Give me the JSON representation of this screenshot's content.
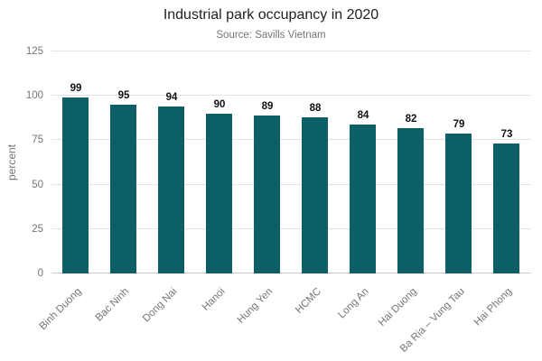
{
  "header": {
    "title": "Industrial park occupancy in 2020",
    "subtitle": "Source: Savills Vietnam"
  },
  "chart_data": {
    "type": "bar",
    "title": "Industrial park occupancy in 2020",
    "subtitle": "Source: Savills Vietnam",
    "categories": [
      "Binh Duong",
      "Bac Ninh",
      "Dong Nai",
      "Hanoi",
      "Hung Yen",
      "HCMC",
      "Long An",
      "Hai Duong",
      "Ba Ria – Vung Tau",
      "Hai Phong"
    ],
    "values": [
      99,
      95,
      94,
      90,
      89,
      88,
      84,
      82,
      79,
      73
    ],
    "xlabel": "",
    "ylabel": "percent",
    "ylim": [
      0,
      125
    ],
    "yticks": [
      0,
      25,
      50,
      75,
      100,
      125
    ],
    "grid": true,
    "legend": "none",
    "value_labels": true,
    "bar_color": "#0c5f66",
    "axis_text_color": "#757575",
    "gridline_color": "#e3e3e3"
  }
}
